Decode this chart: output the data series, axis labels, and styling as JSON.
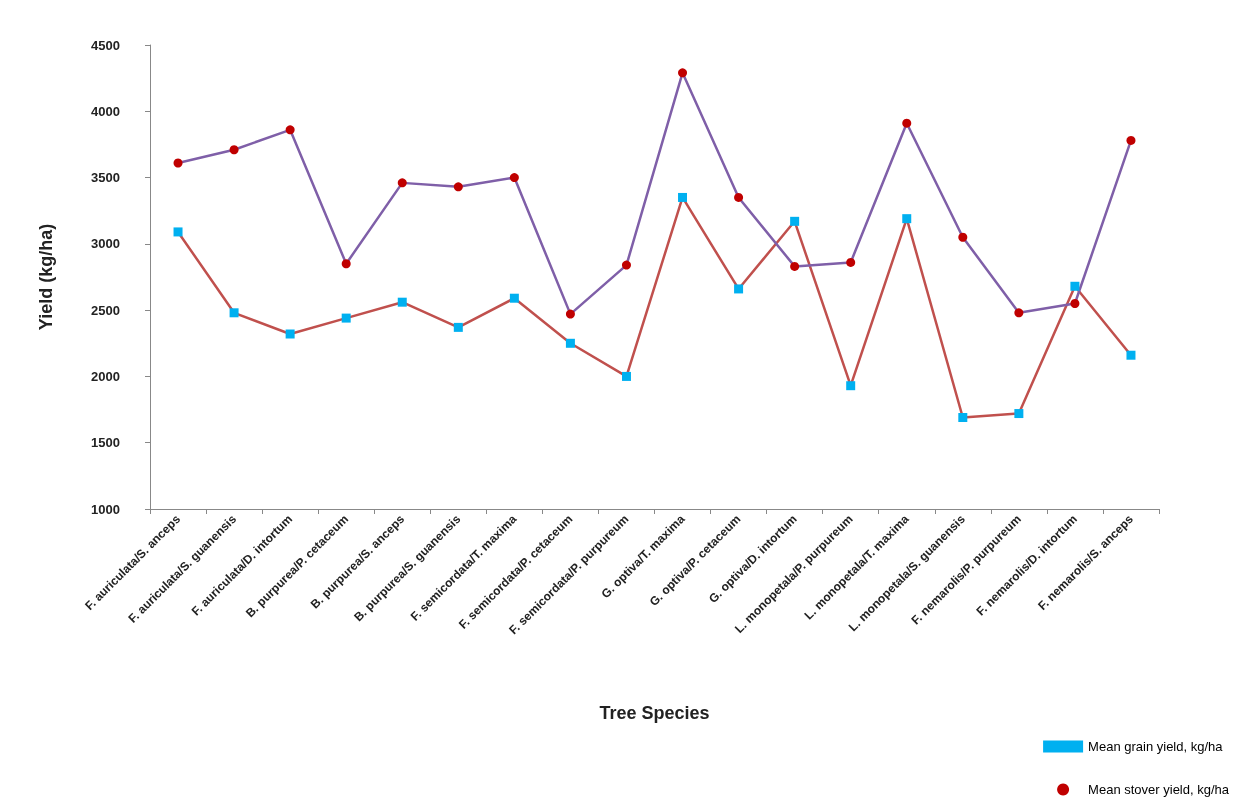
{
  "chart_data": {
    "type": "line",
    "xlabel": "Tree Species",
    "ylabel": "Yield (kg/ha)",
    "categories": [
      "F. auriculata/S. anceps",
      "F. auriculata/S. guanensis",
      "F. auriculata/D. intortum",
      "B. purpurea/P. cetaceum",
      "B. purpurea/S. anceps",
      "B. purpurea/S. guanensis",
      "F. semicordata/T. maxima",
      "F. semicordata/P. cetaceum",
      "F. semicordata/P. purpureum",
      "G. optiva/T. maxima",
      "G. optiva/P. cetaceum",
      "G. optiva/D. intortum",
      "L. monopetala/P. purpureum",
      "L. monopetala/T. maxima",
      "L. monopetala/S. guanensis",
      "F. nemarolis/P. purpureum",
      "F. nemarolis/D. intortum",
      "F. nemarolis/S. anceps"
    ],
    "series": [
      {
        "name": "Mean grain yield, kg/ha",
        "color": "#c0504d",
        "marker": "square",
        "colors": [
          "#00b0f0",
          "#00b0f0",
          "#00b0f0",
          "#00b0f0",
          "#00b0f0",
          "#00b0f0",
          "#00b0f0",
          "#00b0f0",
          "#00b0f0",
          "#00b0f0",
          "#00b0f0",
          "#00b0f0",
          "#00b0f0",
          "#00b0f0",
          "#00b0f0",
          "#00b0f0",
          "#00b0f0",
          "#00b0f0"
        ],
        "values": [
          3090,
          2480,
          2320,
          2440,
          2560,
          2370,
          2590,
          2250,
          2000,
          3350,
          2660,
          3170,
          1930,
          3190,
          1690,
          1720,
          2680,
          2160
        ]
      },
      {
        "name": "Mean stover yield, kg/ha",
        "color": "#7f5fa8",
        "marker": "circle",
        "colors": [
          "#c00000",
          "#c00000",
          "#c00000",
          "#c00000",
          "#c00000",
          "#c00000",
          "#c00000",
          "#c00000",
          "#c00000",
          "#c00000",
          "#c00000",
          "#c00000",
          "#c00000",
          "#c00000",
          "#c00000",
          "#c00000",
          "#c00000",
          "#c00000"
        ],
        "values": [
          3610,
          3710,
          3860,
          2850,
          3460,
          3430,
          3500,
          2470,
          2840,
          4290,
          3350,
          2830,
          2860,
          3910,
          3050,
          2480,
          2550,
          3780
        ]
      }
    ],
    "ylim": [
      1000,
      4500
    ],
    "yticks": [
      1000,
      1500,
      2000,
      2500,
      3000,
      3500,
      4000,
      4500
    ],
    "grid": false,
    "legend": "bottom right",
    "line_style": "solid"
  }
}
